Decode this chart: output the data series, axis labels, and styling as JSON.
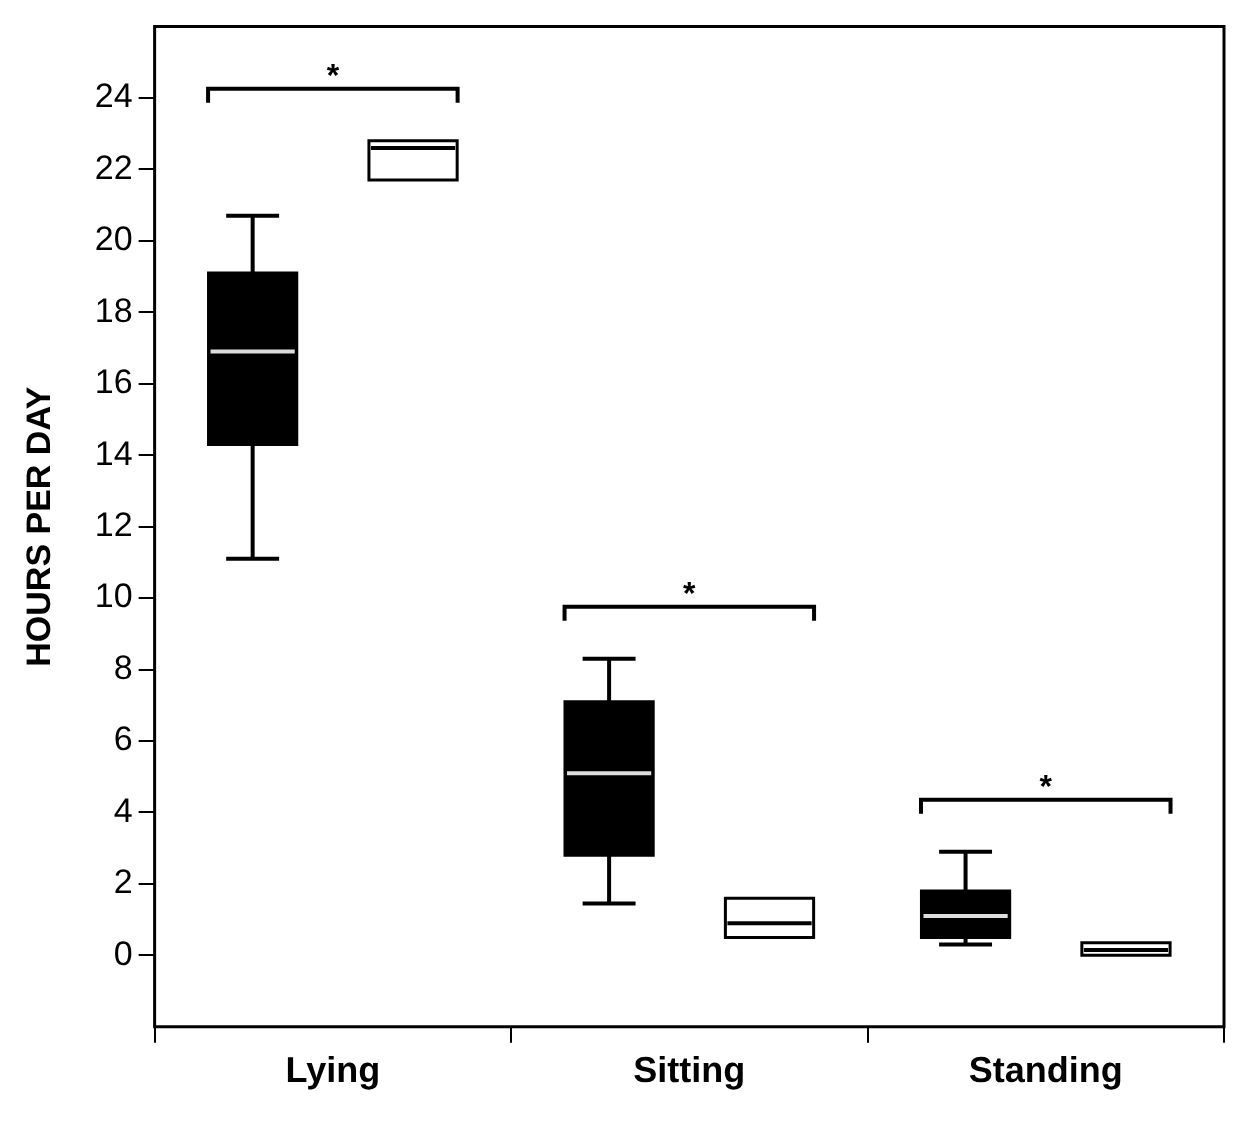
{
  "chart_data": {
    "type": "box",
    "ylabel": "HOURS PER DAY",
    "categories": [
      "Lying",
      "Sitting",
      "Standing"
    ],
    "series": [
      {
        "color": "#000000",
        "boxes": [
          {
            "low": 11.1,
            "q1": 14.3,
            "median": 16.9,
            "q3": 19.1,
            "high": 20.7
          },
          {
            "low": 1.45,
            "q1": 2.8,
            "median": 5.1,
            "q3": 7.1,
            "high": 8.3
          },
          {
            "low": 0.3,
            "q1": 0.5,
            "median": 1.1,
            "q3": 1.8,
            "high": 2.9
          }
        ]
      },
      {
        "color": "#ffffff",
        "boxes": [
          {
            "low": 21.7,
            "q1": 21.7,
            "median": 22.6,
            "q3": 22.8,
            "high": 22.8
          },
          {
            "low": 0.5,
            "q1": 0.5,
            "median": 0.9,
            "q3": 1.6,
            "high": 1.6
          },
          {
            "low": 0,
            "q1": 0,
            "median": 0.15,
            "q3": 0.35,
            "high": 0.35
          }
        ]
      }
    ],
    "ylim": [
      -2,
      26
    ],
    "yticks": [
      0,
      2,
      4,
      6,
      8,
      10,
      12,
      14,
      16,
      18,
      20,
      22,
      24
    ],
    "grid": false,
    "legend": false,
    "annotations": [
      "*",
      "*",
      "*"
    ]
  }
}
